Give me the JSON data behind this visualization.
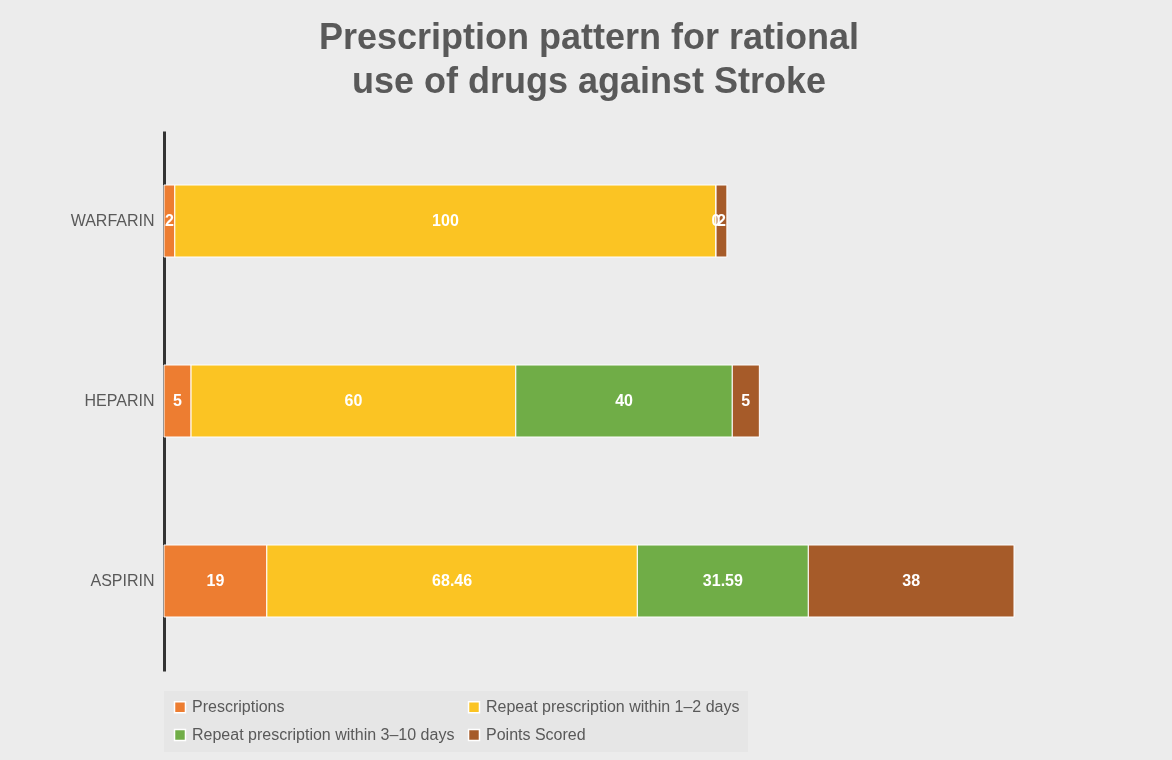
{
  "chart_data": {
    "type": "bar",
    "orientation": "horizontal",
    "stacked": true,
    "title": "Prescription pattern for rational use of drugs against Stroke",
    "categories": [
      "WARFARIN",
      "HEPARIN",
      "ASPIRIN"
    ],
    "series": [
      {
        "name": "Prescriptions",
        "color": "#ed7d31",
        "values": [
          2,
          5,
          19
        ]
      },
      {
        "name": "Repeat prescription within 1–2 days",
        "color": "#fbc423",
        "values": [
          100,
          60,
          68.46
        ]
      },
      {
        "name": "Repeat prescription within 3–10 days",
        "color": "#70ad47",
        "values": [
          0,
          40,
          31.59
        ]
      },
      {
        "name": "Points Scored",
        "color": "#a65b29",
        "values": [
          2,
          5,
          38
        ]
      }
    ],
    "data_labels": true,
    "legend": "bottom",
    "grid": false
  }
}
